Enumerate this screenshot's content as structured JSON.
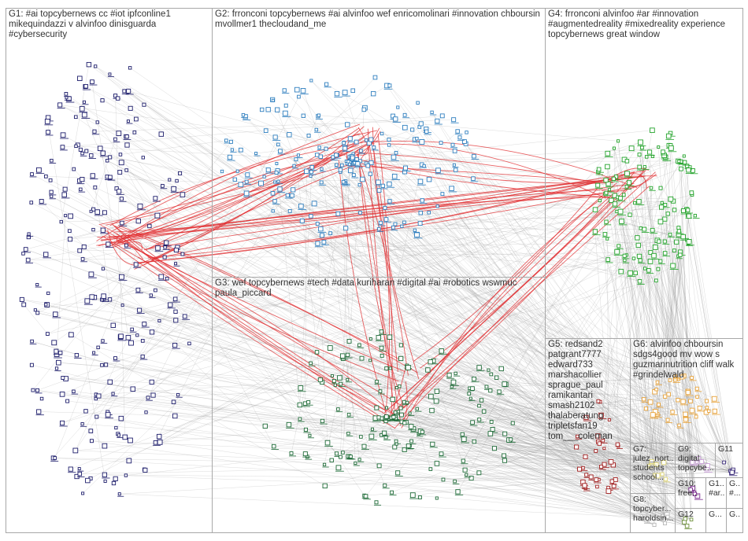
{
  "colors": {
    "background": "#ffffff",
    "box_border": "#a8a8a8",
    "label_text": "#333333",
    "edge_gray": "#9a9a9a",
    "edge_red": "#e0292c",
    "node_g1": "#1d1d6b",
    "node_g2": "#2f7fbf",
    "node_g3": "#1f6b38",
    "node_g4": "#23a32b",
    "node_g5": "#a11d1d",
    "node_g6": "#e8a33a",
    "node_g7": "#e2d97a",
    "node_g8": "#b7b7b7",
    "node_g9": "#c9a0d8",
    "node_g10": "#7c2b8f",
    "node_g11": "#3a2a7a",
    "node_g12": "#6d8f3a"
  },
  "groups": [
    {
      "id": "G1",
      "label": "G1: #ai topcybernews cc #iot ipfconline1\nmikequindazzi v alvinfoo dinisguarda\n#cybersecurity"
    },
    {
      "id": "G2",
      "label": "G2: frronconi topcybernews #ai alvinfoo wef enricomolinari #innovation chboursin\nmvollmer1 thecloudand_me"
    },
    {
      "id": "G3",
      "label": "G3: wef topcybernews #tech #data kuriharan #digital #ai #robotics wswmuc\npaula_piccard"
    },
    {
      "id": "G4",
      "label": "G4: frronconi alvinfoo #ar #innovation\n#augmentedreality #mixedreality experience\ntopcybernews great window"
    },
    {
      "id": "G5",
      "label": "G5: redsand2\npatgrant7777\nedward733\nmarshacollier\nsprague_paul\nramikantari\nsmash2102\nthalaberatung\ntripletsfan19\ntom___coleman"
    },
    {
      "id": "G6",
      "label": "G6: alvinfoo chboursin\nsdgs4good mv wow s\nguzmannutrition cliff walk\n#grindelwald"
    },
    {
      "id": "G7",
      "label": "G7:\njulez_nort...\nstudents\nschool..."
    },
    {
      "id": "G8",
      "label": "G8:\ntopcyber...\nharoldsin..."
    },
    {
      "id": "G9",
      "label": "G9:\ndigital\ntopcybe..."
    },
    {
      "id": "G10",
      "label": "G10:\nfree..."
    },
    {
      "id": "G11",
      "label": "G11"
    },
    {
      "id": "G1x",
      "label": "G1...\n#ar..."
    },
    {
      "id": "G1y",
      "label": "G...\n#..."
    },
    {
      "id": "G12",
      "label": "G12"
    },
    {
      "id": "G1z",
      "label": "G..."
    },
    {
      "id": "G1w",
      "label": "G..."
    }
  ]
}
